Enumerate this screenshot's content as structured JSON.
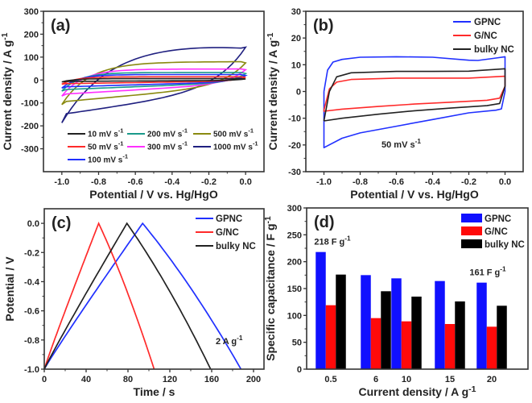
{
  "chart_data": [
    {
      "id": "a",
      "type": "line",
      "panel_label": "(a)",
      "title": "",
      "xlabel": "Potential / V vs. Hg/HgO",
      "ylabel": "Current density / A g",
      "ylabel_sup": "-1",
      "xlim": [
        -1.1,
        0.1
      ],
      "ylim": [
        -400,
        300
      ],
      "xticks": [
        -1.0,
        -0.8,
        -0.6,
        -0.4,
        -0.2,
        0.0
      ],
      "xtick_labels": [
        "-1.0",
        "-0.8",
        "-0.6",
        "-0.4",
        "-0.2",
        "0.0"
      ],
      "yticks": [
        -300,
        -200,
        -100,
        0,
        100,
        200,
        300
      ],
      "ytick_labels": [
        "-300",
        "-200",
        "-100",
        "0",
        "100",
        "200",
        "300"
      ],
      "grid": false,
      "legend_position": "bottom",
      "series": [
        {
          "name": "10 mV s",
          "sup": "-1",
          "color": "#222222",
          "upper": 6,
          "lower": -6,
          "corner_up": 5,
          "corner_low": -8
        },
        {
          "name": "50 mV s",
          "sup": "-1",
          "color": "#ff2a2a",
          "upper": 14,
          "lower": -16,
          "corner_up": 12,
          "corner_low": -18
        },
        {
          "name": "100 mV s",
          "sup": "-1",
          "color": "#2030ff",
          "upper": 24,
          "lower": -30,
          "corner_up": 20,
          "corner_low": -35
        },
        {
          "name": "200 mV s",
          "sup": "-1",
          "color": "#1a9a8a",
          "upper": 33,
          "lower": -42,
          "corner_up": 28,
          "corner_low": -48
        },
        {
          "name": "300 mV s",
          "sup": "-1",
          "color": "#ff30ff",
          "upper": 48,
          "lower": -62,
          "corner_up": 45,
          "corner_low": -70
        },
        {
          "name": "500 mV s",
          "sup": "-1",
          "color": "#8a8a10",
          "upper": 80,
          "lower": -95,
          "corner_up": 75,
          "corner_low": -107
        },
        {
          "name": "1000 mV s",
          "sup": "-1",
          "color": "#202080",
          "upper": 155,
          "lower": -150,
          "corner_up": 143,
          "corner_low": -187
        }
      ]
    },
    {
      "id": "b",
      "type": "line",
      "panel_label": "(b)",
      "xlabel": "Potential / V vs. Hg/HgO",
      "ylabel": "Current density / A g",
      "ylabel_sup": "-1",
      "xlim": [
        -1.1,
        0.1
      ],
      "ylim": [
        -30,
        30
      ],
      "xticks": [
        -1.0,
        -0.8,
        -0.6,
        -0.4,
        -0.2,
        0.0
      ],
      "xtick_labels": [
        "-1.0",
        "-0.8",
        "-0.6",
        "-0.4",
        "-0.2",
        "0.0"
      ],
      "yticks": [
        -30,
        -20,
        -10,
        0,
        10,
        20,
        30
      ],
      "ytick_labels": [
        "-30",
        "-20",
        "-10",
        "0",
        "10",
        "20",
        "30"
      ],
      "grid": false,
      "legend_position": "top-right",
      "annotation": {
        "text": "50 mV s",
        "sup": "-1"
      },
      "series": [
        {
          "name": "GPNC",
          "color": "#2030ff",
          "x": [
            -1.0,
            -0.98,
            -0.95,
            -0.9,
            -0.8,
            -0.6,
            -0.4,
            -0.2,
            -0.15,
            -0.05,
            0.0,
            0.0,
            -0.02,
            -0.05,
            -0.2,
            -0.4,
            -0.6,
            -0.8,
            -0.9,
            -1.0,
            -1.0
          ],
          "y": [
            0,
            8,
            11,
            12,
            12.8,
            13,
            12.8,
            11.7,
            11.6,
            12.5,
            13,
            0,
            -6.5,
            -7,
            -8,
            -10.5,
            -13,
            -15.5,
            -17.5,
            -21,
            0
          ]
        },
        {
          "name": "G/NC",
          "color": "#ff2a2a",
          "x": [
            -1.0,
            -0.97,
            -0.93,
            -0.85,
            -0.6,
            -0.4,
            -0.2,
            0.0,
            0.0,
            -0.03,
            -0.1,
            -0.3,
            -0.5,
            -0.7,
            -0.9,
            -1.0,
            -1.0
          ],
          "y": [
            -7,
            1,
            3.5,
            4.5,
            5,
            5,
            5,
            5.7,
            2,
            -2.5,
            -3.3,
            -4,
            -4.7,
            -5.6,
            -6.6,
            -7.4,
            -7
          ]
        },
        {
          "name": "bulky NC",
          "color": "#222222",
          "x": [
            -1.0,
            -0.97,
            -0.93,
            -0.85,
            -0.6,
            -0.4,
            -0.2,
            0.0,
            0.0,
            -0.03,
            -0.1,
            -0.3,
            -0.5,
            -0.7,
            -0.9,
            -1.0,
            -1.0
          ],
          "y": [
            -11,
            0,
            5.5,
            7,
            7.5,
            7.5,
            7.6,
            8.5,
            2,
            -4.5,
            -5.3,
            -6.2,
            -7.2,
            -8.5,
            -10,
            -11,
            -11
          ]
        }
      ]
    },
    {
      "id": "c",
      "type": "line",
      "panel_label": "(c)",
      "xlabel": "Time / s",
      "ylabel": "Potential / V",
      "xlim": [
        0,
        210
      ],
      "ylim": [
        -1.0,
        0.1
      ],
      "xticks": [
        0,
        40,
        80,
        120,
        160,
        200
      ],
      "xtick_labels": [
        "0",
        "40",
        "80",
        "120",
        "160",
        "200"
      ],
      "yticks": [
        -1.0,
        -0.8,
        -0.6,
        -0.4,
        -0.2,
        0.0
      ],
      "ytick_labels": [
        "-1.0",
        "-0.8",
        "-0.6",
        "-0.4",
        "-0.2",
        "0.0"
      ],
      "grid": false,
      "legend_position": "top-right",
      "annotation": {
        "text": "2 A g",
        "sup": "-1"
      },
      "series": [
        {
          "name": "GPNC",
          "color": "#2030ff",
          "charge_end": 94,
          "discharge_end": 188
        },
        {
          "name": "G/NC",
          "color": "#ff2a2a",
          "charge_end": 52,
          "discharge_end": 105
        },
        {
          "name": "bulky NC",
          "color": "#222222",
          "charge_end": 79,
          "discharge_end": 159
        }
      ]
    },
    {
      "id": "d",
      "type": "bar",
      "panel_label": "(d)",
      "xlabel": "Current density / A g",
      "xlabel_sup": "-1",
      "ylabel": "Specific capacitance / F g",
      "ylabel_sup": "-1",
      "ylim": [
        0,
        300
      ],
      "yticks": [
        0,
        50,
        100,
        150,
        200,
        250,
        300
      ],
      "ytick_labels": [
        "0",
        "50",
        "100",
        "150",
        "200",
        "250",
        "300"
      ],
      "categories": [
        "0.5",
        "6",
        "10",
        "15",
        "20"
      ],
      "grid": false,
      "legend_position": "top-right",
      "annotations": [
        {
          "text": "218 F g",
          "sup": "-1",
          "category": "0.5"
        },
        {
          "text": "161 F g",
          "sup": "-1",
          "category": "20"
        }
      ],
      "series": [
        {
          "name": "GPNC",
          "color": "#1010ff",
          "values": [
            218,
            175,
            169,
            164,
            161
          ]
        },
        {
          "name": "G/NC",
          "color": "#ff0a0a",
          "values": [
            119,
            95,
            89,
            84,
            79
          ]
        },
        {
          "name": "bulky NC",
          "color": "#000000",
          "values": [
            176,
            145,
            135,
            126,
            118
          ]
        }
      ]
    }
  ]
}
